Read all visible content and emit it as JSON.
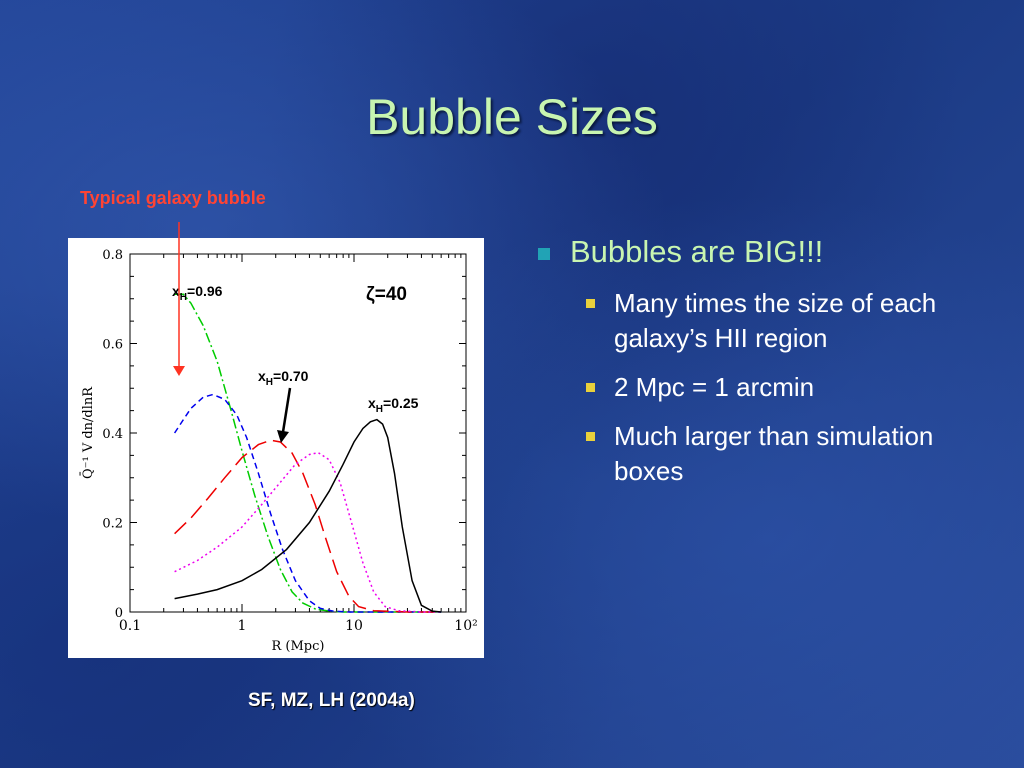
{
  "slide": {
    "title": "Bubble Sizes",
    "annotation_label": "Typical galaxy bubble",
    "caption": "SF, MZ, LH (2004a)",
    "bullets": {
      "main": "Bubbles are BIG!!!",
      "sub": [
        "Many times the size of each galaxy’s HII region",
        "2 Mpc = 1 arcmin",
        "Much larger than simulation boxes"
      ]
    }
  },
  "colors": {
    "title": "#c8f5b0",
    "annotation": "#ff4433",
    "bullet_main_marker": "#21a3b5",
    "bullet_sub_marker": "#e9d13c"
  },
  "chart_data": {
    "type": "line",
    "x_scale": "log",
    "xlim": [
      0.1,
      100
    ],
    "ylim": [
      0,
      0.8
    ],
    "xticks": [
      {
        "value": 0.1,
        "label": "0.1"
      },
      {
        "value": 1,
        "label": "1"
      },
      {
        "value": 10,
        "label": "10"
      },
      {
        "value": 100,
        "label": "10²"
      }
    ],
    "yticks": [
      {
        "value": 0,
        "label": "0"
      },
      {
        "value": 0.2,
        "label": "0.2"
      },
      {
        "value": 0.4,
        "label": "0.4"
      },
      {
        "value": 0.6,
        "label": "0.6"
      },
      {
        "value": 0.8,
        "label": "0.8"
      }
    ],
    "xlabel": "R (Mpc)",
    "ylabel": "Q̄⁻¹ V dn/dlnR",
    "zeta_label": "ζ=40",
    "curve_labels": [
      {
        "text": "x",
        "sub": "H",
        "value": "=0.96"
      },
      {
        "text": "x",
        "sub": "H",
        "value": "=0.70"
      },
      {
        "text": "x",
        "sub": "H",
        "value": "=0.25"
      }
    ],
    "series": [
      {
        "color": "#00cc00",
        "dash": "10,3,2,3",
        "x": [
          0.25,
          0.3,
          0.35,
          0.45,
          0.6,
          0.8,
          1.0,
          1.3,
          1.7,
          2.2,
          2.8,
          3.5,
          4.5,
          6,
          8,
          20,
          60
        ],
        "y": [
          0.71,
          0.71,
          0.69,
          0.64,
          0.56,
          0.45,
          0.36,
          0.26,
          0.17,
          0.095,
          0.045,
          0.02,
          0.007,
          0.002,
          0.0,
          0.0,
          0.0
        ]
      },
      {
        "color": "#0000ee",
        "dash": "6,4",
        "x": [
          0.25,
          0.3,
          0.35,
          0.45,
          0.55,
          0.7,
          0.9,
          1.1,
          1.4,
          1.8,
          2.3,
          3.0,
          4.0,
          5.0,
          6.5,
          9,
          20,
          60
        ],
        "y": [
          0.4,
          0.43,
          0.455,
          0.48,
          0.486,
          0.475,
          0.44,
          0.39,
          0.31,
          0.22,
          0.14,
          0.07,
          0.025,
          0.008,
          0.002,
          0.0,
          0.0,
          0.0
        ]
      },
      {
        "color": "#ee0000",
        "dash": "16,7",
        "x": [
          0.25,
          0.35,
          0.5,
          0.7,
          1.0,
          1.4,
          1.8,
          2.2,
          2.8,
          3.5,
          4.5,
          5.5,
          7,
          9,
          11,
          15,
          30,
          60
        ],
        "y": [
          0.175,
          0.21,
          0.255,
          0.3,
          0.345,
          0.374,
          0.384,
          0.38,
          0.355,
          0.31,
          0.24,
          0.17,
          0.09,
          0.035,
          0.012,
          0.003,
          0.0,
          0.0
        ]
      },
      {
        "color": "#ee00ee",
        "dash": "2,3",
        "x": [
          0.25,
          0.4,
          0.6,
          1.0,
          1.5,
          2.2,
          3.0,
          4.0,
          4.8,
          6,
          7.5,
          9.5,
          12,
          15,
          19,
          25,
          40,
          60
        ],
        "y": [
          0.09,
          0.115,
          0.145,
          0.19,
          0.24,
          0.29,
          0.33,
          0.352,
          0.356,
          0.34,
          0.29,
          0.2,
          0.11,
          0.045,
          0.012,
          0.003,
          0.0,
          0.0
        ]
      },
      {
        "color": "#000000",
        "dash": "",
        "x": [
          0.25,
          0.4,
          0.6,
          1.0,
          1.5,
          2.5,
          4,
          6,
          8,
          10,
          12,
          14,
          16,
          18,
          20,
          23,
          27,
          33,
          40,
          50,
          60
        ],
        "y": [
          0.03,
          0.04,
          0.05,
          0.07,
          0.095,
          0.14,
          0.2,
          0.27,
          0.33,
          0.38,
          0.41,
          0.425,
          0.43,
          0.42,
          0.39,
          0.31,
          0.19,
          0.07,
          0.015,
          0.002,
          0.0
        ]
      }
    ]
  }
}
